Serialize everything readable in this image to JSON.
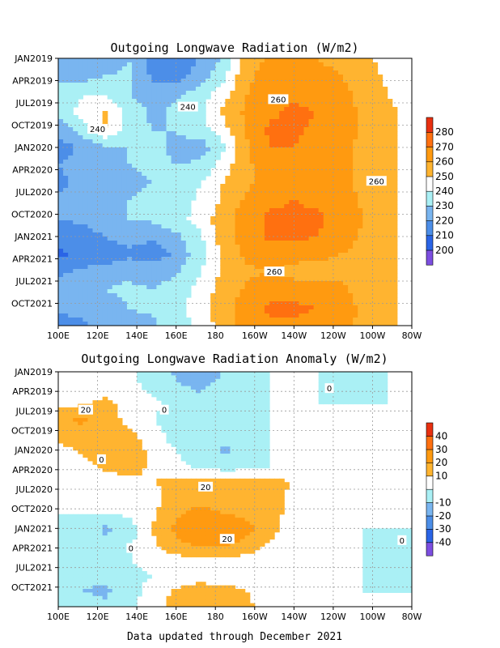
{
  "footer": "Data updated through December 2021",
  "chart_data": [
    {
      "type": "heatmap",
      "title": "Outgoing Longwave Radiation (W/m2)",
      "x_tick_labels": [
        "100E",
        "120E",
        "140E",
        "160E",
        "180",
        "160W",
        "140W",
        "120W",
        "100W",
        "80W"
      ],
      "y_tick_labels": [
        "JAN2019",
        "APR2019",
        "JUL2019",
        "OCT2019",
        "JAN2020",
        "APR2020",
        "JUL2020",
        "OCT2020",
        "JAN2021",
        "APR2021",
        "JUL2021",
        "OCT2021"
      ],
      "colorbar": {
        "levels": [
          "200",
          "210",
          "220",
          "230",
          "240",
          "250",
          "260",
          "270",
          "280"
        ],
        "colors": [
          "#7c4ee0",
          "#2a64e6",
          "#4c8ee8",
          "#79b5f0",
          "#aaf0f5",
          "#ffffff",
          "#ffb430",
          "#ff9a10",
          "#ff7010",
          "#e83010"
        ]
      },
      "contour_labels": [
        {
          "text": "240",
          "lon": 120,
          "month": 9.5
        },
        {
          "text": "240",
          "lon": 166,
          "month": 6.5
        },
        {
          "text": "260",
          "lon": 212,
          "month": 5.5
        },
        {
          "text": "260",
          "lon": 262,
          "month": 16.5
        },
        {
          "text": "260",
          "lon": 210,
          "month": 28.7
        }
      ],
      "values": [
        [
          225,
          220,
          222,
          230,
          215,
          212,
          220,
          232,
          255,
          262,
          262,
          260,
          258,
          252,
          247,
          240
        ],
        [
          228,
          226,
          230,
          232,
          218,
          215,
          225,
          238,
          258,
          264,
          263,
          262,
          260,
          254,
          248,
          242
        ],
        [
          232,
          240,
          238,
          230,
          226,
          228,
          235,
          246,
          260,
          266,
          268,
          266,
          263,
          256,
          250,
          244
        ],
        [
          236,
          243,
          252,
          236,
          228,
          232,
          238,
          252,
          262,
          268,
          272,
          270,
          265,
          258,
          252,
          246
        ],
        [
          222,
          235,
          250,
          234,
          230,
          230,
          236,
          246,
          262,
          272,
          272,
          268,
          264,
          258,
          252,
          246
        ],
        [
          215,
          222,
          228,
          230,
          232,
          228,
          224,
          238,
          258,
          270,
          270,
          266,
          262,
          258,
          252,
          246
        ],
        [
          220,
          224,
          228,
          230,
          232,
          230,
          232,
          245,
          258,
          266,
          266,
          264,
          262,
          258,
          252,
          246
        ],
        [
          218,
          222,
          225,
          228,
          230,
          232,
          240,
          250,
          258,
          264,
          265,
          264,
          262,
          258,
          252,
          246
        ],
        [
          222,
          224,
          226,
          230,
          232,
          236,
          242,
          252,
          262,
          268,
          270,
          268,
          264,
          258,
          252,
          246
        ],
        [
          220,
          222,
          225,
          230,
          232,
          236,
          244,
          256,
          266,
          272,
          273,
          272,
          266,
          260,
          252,
          246
        ],
        [
          212,
          216,
          220,
          224,
          222,
          228,
          238,
          255,
          266,
          272,
          272,
          270,
          265,
          258,
          252,
          246
        ],
        [
          208,
          212,
          214,
          218,
          214,
          222,
          236,
          252,
          262,
          266,
          264,
          262,
          260,
          256,
          252,
          246
        ],
        [
          218,
          222,
          225,
          228,
          226,
          228,
          240,
          252,
          258,
          260,
          256,
          256,
          258,
          256,
          252,
          246
        ],
        [
          226,
          228,
          230,
          232,
          230,
          234,
          244,
          254,
          262,
          266,
          266,
          264,
          262,
          256,
          252,
          246
        ],
        [
          222,
          224,
          226,
          230,
          232,
          236,
          246,
          256,
          266,
          272,
          272,
          270,
          264,
          258,
          252,
          246
        ],
        [
          215,
          218,
          222,
          226,
          228,
          234,
          244,
          254,
          264,
          268,
          268,
          266,
          262,
          258,
          252,
          246
        ]
      ]
    },
    {
      "type": "heatmap",
      "title": "Outgoing Longwave Radiation Anomaly (W/m2)",
      "x_tick_labels": [
        "100E",
        "120E",
        "140E",
        "160E",
        "180",
        "160W",
        "140W",
        "120W",
        "100W",
        "80W"
      ],
      "y_tick_labels": [
        "JAN2019",
        "APR2019",
        "JUL2019",
        "OCT2019",
        "JAN2020",
        "APR2020",
        "JUL2020",
        "OCT2020",
        "JAN2021",
        "APR2021",
        "JUL2021",
        "OCT2021"
      ],
      "colorbar": {
        "levels": [
          "-40",
          "-30",
          "-20",
          "-10",
          "10",
          "20",
          "30",
          "40"
        ],
        "colors": [
          "#7c4ee0",
          "#2a64e6",
          "#4c8ee8",
          "#79b5f0",
          "#aaf0f5",
          "#ffffff",
          "#ffb430",
          "#ff9a10",
          "#ff7010",
          "#e83010"
        ]
      },
      "contour_labels": [
        {
          "text": "0",
          "lon": 238,
          "month": 2.5
        },
        {
          "text": "20",
          "lon": 114,
          "month": 5.8
        },
        {
          "text": "0",
          "lon": 154,
          "month": 5.8
        },
        {
          "text": "0",
          "lon": 122,
          "month": 13.4
        },
        {
          "text": "20",
          "lon": 175,
          "month": 17.6
        },
        {
          "text": "20",
          "lon": 186,
          "month": 25.6
        },
        {
          "text": "0",
          "lon": 137,
          "month": 27.0
        },
        {
          "text": "0",
          "lon": 275,
          "month": 25.8
        }
      ],
      "values": [
        [
          4,
          8,
          6,
          2,
          -4,
          -12,
          -16,
          -10,
          -2,
          0,
          1,
          0,
          0,
          -1,
          0,
          0
        ],
        [
          4,
          10,
          6,
          2,
          -2,
          -8,
          -12,
          -6,
          -1,
          0,
          0,
          0,
          -4,
          -2,
          0,
          0
        ],
        [
          6,
          8,
          12,
          6,
          2,
          -2,
          -6,
          -4,
          -1,
          0,
          1,
          0,
          0,
          0,
          0,
          0
        ],
        [
          18,
          22,
          16,
          6,
          0,
          -4,
          -8,
          -6,
          -2,
          0,
          0,
          0,
          0,
          0,
          0,
          0
        ],
        [
          14,
          16,
          18,
          12,
          4,
          -4,
          -6,
          -4,
          0,
          0,
          0,
          0,
          0,
          0,
          0,
          0
        ],
        [
          6,
          12,
          16,
          18,
          6,
          0,
          -6,
          -12,
          -6,
          0,
          0,
          0,
          0,
          0,
          0,
          0
        ],
        [
          2,
          6,
          12,
          14,
          8,
          2,
          -2,
          -6,
          -4,
          0,
          0,
          0,
          0,
          0,
          0,
          4
        ],
        [
          2,
          4,
          6,
          8,
          10,
          12,
          14,
          16,
          14,
          12,
          10,
          0,
          0,
          0,
          0,
          4
        ],
        [
          1,
          2,
          2,
          2,
          6,
          16,
          18,
          16,
          14,
          12,
          8,
          2,
          0,
          0,
          0,
          0
        ],
        [
          0,
          0,
          0,
          2,
          8,
          18,
          22,
          20,
          16,
          14,
          6,
          2,
          0,
          0,
          0,
          0
        ],
        [
          0,
          -2,
          -12,
          -4,
          10,
          22,
          28,
          30,
          24,
          14,
          4,
          2,
          0,
          0,
          0,
          0
        ],
        [
          0,
          -2,
          -8,
          -2,
          8,
          18,
          22,
          22,
          16,
          8,
          2,
          0,
          0,
          0,
          -1,
          -2
        ],
        [
          -1,
          -2,
          -2,
          0,
          2,
          6,
          8,
          8,
          6,
          4,
          2,
          0,
          0,
          0,
          -1,
          -1
        ],
        [
          -2,
          -8,
          -6,
          -2,
          0,
          2,
          4,
          4,
          2,
          0,
          0,
          0,
          0,
          0,
          -2,
          -1
        ],
        [
          -4,
          -10,
          -12,
          -4,
          4,
          12,
          16,
          14,
          10,
          4,
          0,
          0,
          0,
          0,
          0,
          0
        ],
        [
          -2,
          -6,
          -8,
          -2,
          6,
          14,
          18,
          16,
          12,
          6,
          2,
          0,
          0,
          0,
          0,
          0
        ]
      ]
    }
  ]
}
